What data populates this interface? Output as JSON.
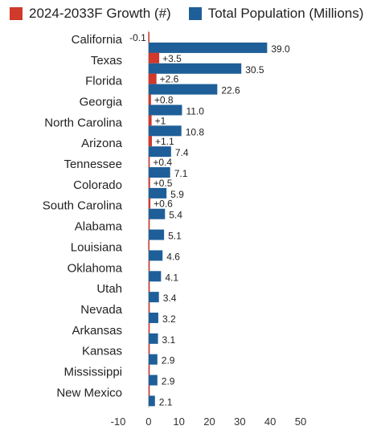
{
  "chart_data": {
    "type": "bar",
    "orientation": "horizontal",
    "categories": [
      "California",
      "Texas",
      "Florida",
      "Georgia",
      "North Carolina",
      "Arizona",
      "Tennessee",
      "Colorado",
      "South Carolina",
      "Alabama",
      "Louisiana",
      "Oklahoma",
      "Utah",
      "Nevada",
      "Arkansas",
      "Kansas",
      "Mississippi",
      "New Mexico"
    ],
    "series": [
      {
        "name": "2024-2033F Growth (#)",
        "color": "#d0392b",
        "values": [
          -0.1,
          3.5,
          2.6,
          0.8,
          1.0,
          1.1,
          0.4,
          0.5,
          0.6,
          0.1,
          -0.1,
          0.1,
          0.3,
          0.2,
          0.1,
          0.1,
          0.0,
          0.0
        ],
        "labels": [
          "-0.1",
          "+3.5",
          "+2.6",
          "+0.8",
          "+1",
          "+1.1",
          "+0.4",
          "+0.5",
          "+0.6",
          "",
          "",
          "",
          "",
          "",
          "",
          "",
          "",
          ""
        ]
      },
      {
        "name": "Total Population (Millions)",
        "color": "#1f5f99",
        "values": [
          39.0,
          30.5,
          22.6,
          11.0,
          10.8,
          7.4,
          7.1,
          5.9,
          5.4,
          5.1,
          4.6,
          4.1,
          3.4,
          3.2,
          3.1,
          2.9,
          2.9,
          2.1
        ],
        "labels": [
          "39.0",
          "30.5",
          "22.6",
          "11.0",
          "10.8",
          "7.4",
          "7.1",
          "5.9",
          "5.4",
          "5.1",
          "4.6",
          "4.1",
          "3.4",
          "3.2",
          "3.1",
          "2.9",
          "2.9",
          "2.1"
        ]
      }
    ],
    "xlim": [
      -10,
      50
    ],
    "xticks": [
      -10,
      0,
      10,
      20,
      30,
      40,
      50
    ],
    "grid": false,
    "legend_position": "top-left"
  }
}
